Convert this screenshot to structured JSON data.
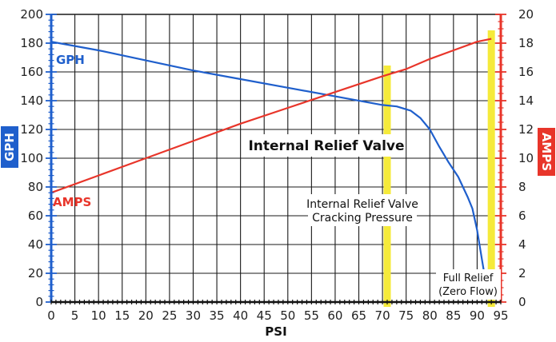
{
  "chart_data": {
    "type": "line",
    "xlabel": "PSI",
    "ylabel_left": "GPH",
    "ylabel_right": "AMPS",
    "xlim": [
      0,
      95
    ],
    "ylim_left": [
      0,
      200
    ],
    "ylim_right": [
      0,
      20
    ],
    "x_ticks": [
      0,
      5,
      10,
      15,
      20,
      25,
      30,
      35,
      40,
      45,
      50,
      55,
      60,
      65,
      70,
      75,
      80,
      85,
      90,
      95
    ],
    "y_ticks_left": [
      0,
      20,
      40,
      60,
      80,
      100,
      120,
      140,
      160,
      180,
      200
    ],
    "y_ticks_right": [
      0,
      2,
      4,
      6,
      8,
      10,
      12,
      14,
      16,
      18,
      20
    ],
    "grid": true,
    "series": [
      {
        "name": "GPH",
        "axis": "left",
        "color": "#1f5fcc",
        "x": [
          0,
          10,
          20,
          30,
          40,
          50,
          60,
          70,
          73,
          76,
          78,
          80,
          82,
          84,
          86,
          88,
          89,
          90,
          91,
          91.5
        ],
        "y": [
          181,
          175,
          168,
          161,
          155,
          149,
          143,
          137,
          136,
          133,
          128,
          120,
          108,
          97,
          87,
          73,
          65,
          50,
          30,
          20
        ]
      },
      {
        "name": "AMPS",
        "axis": "right",
        "color": "#e8352a",
        "x": [
          0,
          10,
          20,
          30,
          40,
          50,
          60,
          70,
          75,
          80,
          85,
          90,
          93
        ],
        "y": [
          7.6,
          8.8,
          10.0,
          11.2,
          12.4,
          13.5,
          14.6,
          15.7,
          16.2,
          16.9,
          17.5,
          18.1,
          18.3
        ]
      }
    ],
    "markers": [
      {
        "x": 71,
        "color": "#f5ea3a"
      },
      {
        "x": 93,
        "color": "#f5ea3a"
      }
    ],
    "annotations": {
      "main": "Internal Relief Valve",
      "cracking_line1": "Internal Relief Valve",
      "cracking_line2": "Cracking Pressure",
      "full_relief_line1": "Full Relief",
      "full_relief_line2": "(Zero Flow)"
    }
  }
}
